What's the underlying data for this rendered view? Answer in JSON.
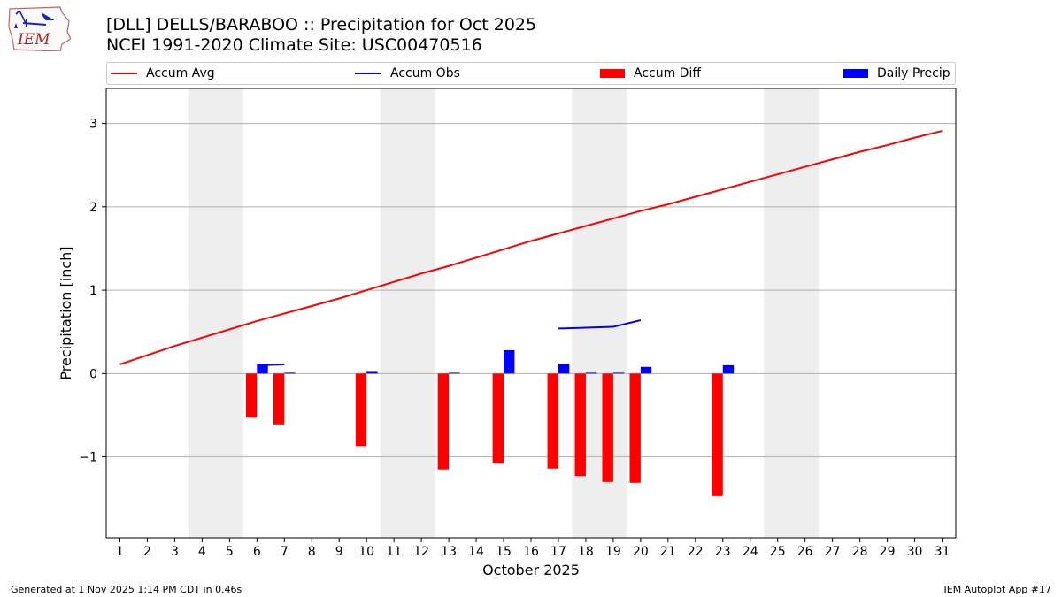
{
  "header": {
    "title": "[DLL] DELLS/BARABOO :: Precipitation for Oct 2025",
    "subtitle": "NCEI 1991-2020 Climate Site: USC00470516",
    "logo_text": "IEM"
  },
  "footer": {
    "left": "Generated at 1 Nov 2025 1:14 PM CDT in 0.46s",
    "right": "IEM Autoplot App #17"
  },
  "colors": {
    "avg": "#ff0000",
    "obs": "#0000ff",
    "diff": "#ff0000",
    "daily": "#0000ff",
    "weekend": "#eeeeee",
    "grid": "#b0b0b0"
  },
  "chart_data": {
    "type": "bar",
    "title": "[DLL] DELLS/BARABOO :: Precipitation for Oct 2025",
    "xlabel": "October 2025",
    "ylabel": "Precipitation [inch]",
    "xlim": [
      0.5,
      31.5
    ],
    "ylim": [
      -1.97,
      3.42
    ],
    "xticks": [
      "1",
      "2",
      "3",
      "4",
      "5",
      "6",
      "7",
      "8",
      "9",
      "10",
      "11",
      "12",
      "13",
      "14",
      "15",
      "16",
      "17",
      "18",
      "19",
      "20",
      "21",
      "22",
      "23",
      "24",
      "25",
      "26",
      "27",
      "28",
      "29",
      "30",
      "31"
    ],
    "yticks": [
      -1,
      0,
      1,
      2,
      3
    ],
    "ytick_labels": [
      "−1",
      "0",
      "1",
      "2",
      "3"
    ],
    "grid": "y",
    "weekend_bands": [
      [
        3.5,
        5.5
      ],
      [
        10.5,
        12.5
      ],
      [
        17.5,
        19.5
      ],
      [
        24.5,
        26.5
      ]
    ],
    "legend": {
      "placement": "top",
      "entries": [
        "Accum Avg",
        "Accum Obs",
        "Accum Diff",
        "Daily Precip"
      ]
    },
    "series": [
      {
        "name": "Accum Avg",
        "kind": "line",
        "days": [
          1,
          2,
          3,
          4,
          5,
          6,
          7,
          8,
          9,
          10,
          11,
          12,
          13,
          14,
          15,
          16,
          17,
          18,
          19,
          20,
          21,
          22,
          23,
          24,
          25,
          26,
          27,
          28,
          29,
          30,
          31
        ],
        "values": [
          0.11,
          0.22,
          0.33,
          0.43,
          0.53,
          0.63,
          0.72,
          0.81,
          0.9,
          1.0,
          1.1,
          1.2,
          1.29,
          1.39,
          1.49,
          1.59,
          1.68,
          1.77,
          1.86,
          1.95,
          2.03,
          2.12,
          2.21,
          2.3,
          2.39,
          2.48,
          2.57,
          2.66,
          2.74,
          2.83,
          2.91
        ]
      },
      {
        "name": "Accum Obs",
        "kind": "line",
        "segments": [
          {
            "days": [
              6,
              7
            ],
            "values": [
              0.1,
              0.11
            ]
          },
          {
            "days": [
              17,
              18,
              19,
              20
            ],
            "values": [
              0.54,
              0.55,
              0.56,
              0.64
            ]
          }
        ]
      },
      {
        "name": "Accum Diff",
        "kind": "bar",
        "days": [
          6,
          7,
          10,
          13,
          15,
          17,
          18,
          19,
          20,
          23
        ],
        "values": [
          -0.53,
          -0.61,
          -0.87,
          -1.15,
          -1.08,
          -1.14,
          -1.23,
          -1.3,
          -1.31,
          -1.47
        ]
      },
      {
        "name": "Daily Precip",
        "kind": "bar",
        "days": [
          6,
          7,
          10,
          13,
          15,
          17,
          18,
          19,
          20,
          23
        ],
        "values": [
          0.1,
          0.01,
          0.02,
          0.01,
          0.28,
          0.12,
          0.01,
          0.01,
          0.08,
          0.1
        ]
      }
    ]
  }
}
